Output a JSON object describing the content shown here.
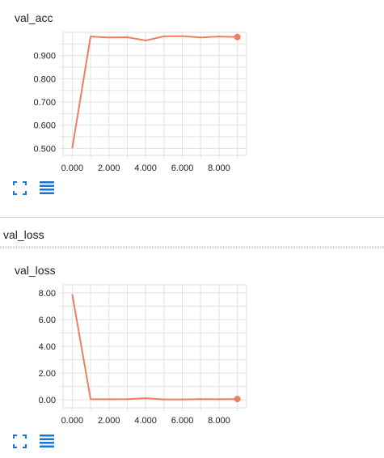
{
  "sections": [
    {
      "title": "val_acc",
      "chart_data": {
        "type": "line",
        "title": "val_acc",
        "x": [
          0,
          1,
          2,
          3,
          4,
          5,
          6,
          7,
          8,
          9
        ],
        "series": [
          {
            "values": [
              0.5,
              0.982,
              0.978,
              0.979,
              0.965,
              0.983,
              0.984,
              0.978,
              0.982,
              0.98
            ]
          }
        ],
        "xticks": [
          "0.000",
          "2.000",
          "4.000",
          "6.000",
          "8.000"
        ],
        "yticks": [
          "0.500",
          "0.600",
          "0.700",
          "0.800",
          "0.900"
        ],
        "xlim": [
          -0.5,
          9.5
        ],
        "ylim": [
          0.47,
          1.0
        ],
        "grid": true,
        "line_color": "#f07e5e"
      }
    },
    {
      "title": "val_loss",
      "chart_data": {
        "type": "line",
        "title": "val_loss",
        "x": [
          0,
          1,
          2,
          3,
          4,
          5,
          6,
          7,
          8,
          9
        ],
        "series": [
          {
            "values": [
              7.9,
              0.05,
              0.04,
              0.05,
              0.12,
              0.03,
              0.03,
              0.05,
              0.04,
              0.06
            ]
          }
        ],
        "xticks": [
          "0.000",
          "2.000",
          "4.000",
          "6.000",
          "8.000"
        ],
        "yticks": [
          "0.00",
          "2.00",
          "4.00",
          "6.00",
          "8.00"
        ],
        "xlim": [
          -0.5,
          9.5
        ],
        "ylim": [
          -0.6,
          8.6
        ],
        "grid": true,
        "line_color": "#f07e5e"
      }
    }
  ],
  "icons": {
    "fullscreen": "fullscreen-icon",
    "data_table": "data-table-icon",
    "accent": "#1976d2"
  }
}
